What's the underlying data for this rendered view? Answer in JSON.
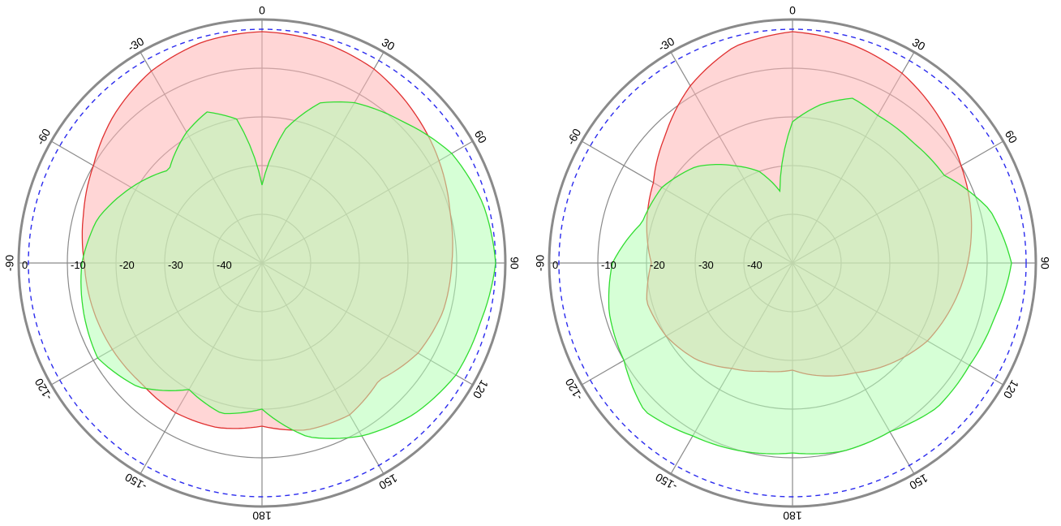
{
  "chart_data": [
    {
      "type": "polar",
      "angle_labels": [
        "0",
        "30",
        "60",
        "90",
        "120",
        "150",
        "180",
        "-150",
        "-120",
        "-90",
        "-60",
        "-30"
      ],
      "radial_labels": [
        "0",
        "-10",
        "-20",
        "-30",
        "-40"
      ],
      "rlim": [
        -50,
        0
      ],
      "reference_ring": -2,
      "grid": true,
      "series": [
        {
          "color": "#e03030",
          "fill": "#ffb4b4",
          "angles": [
            0,
            15,
            30,
            45,
            60,
            75,
            90,
            105,
            120,
            135,
            150,
            165,
            180,
            195,
            210,
            225,
            240,
            255,
            270,
            285,
            300,
            315,
            330,
            345,
            360
          ],
          "values": [
            -2.5,
            -3,
            -4,
            -6,
            -8,
            -10,
            -11,
            -11.5,
            -13,
            -16,
            -14,
            -14.5,
            -16.5,
            -15,
            -14.5,
            -15,
            -14.5,
            -14,
            -13.5,
            -12,
            -10,
            -7,
            -4.5,
            -3,
            -2.5
          ]
        },
        {
          "color": "#30dd30",
          "fill": "#b4ffb4",
          "angles": [
            0,
            10,
            20,
            30,
            45,
            60,
            75,
            90,
            105,
            120,
            135,
            150,
            165,
            180,
            195,
            210,
            225,
            240,
            255,
            270,
            285,
            300,
            315,
            330,
            340,
            350,
            360
          ],
          "values": [
            -34,
            -22,
            -15,
            -12,
            -9,
            -5,
            -3,
            -2,
            -3.5,
            -4,
            -6,
            -9,
            -13,
            -20,
            -18,
            -20,
            -14,
            -11,
            -12,
            -13,
            -15,
            -19,
            -23,
            -19,
            -17,
            -20,
            -34
          ]
        }
      ]
    },
    {
      "type": "polar",
      "angle_labels": [
        "0",
        "30",
        "60",
        "90",
        "120",
        "150",
        "180",
        "-150",
        "-120",
        "-90",
        "-60",
        "-30"
      ],
      "radial_labels": [
        "0",
        "-10",
        "-20",
        "-30",
        "-40"
      ],
      "rlim": [
        -50,
        0
      ],
      "reference_ring": -2,
      "grid": true,
      "series": [
        {
          "color": "#e03030",
          "fill": "#ffb4b4",
          "angles": [
            0,
            15,
            30,
            45,
            60,
            75,
            90,
            105,
            120,
            135,
            150,
            165,
            180,
            195,
            210,
            225,
            240,
            255,
            270,
            285,
            300,
            315,
            330,
            345,
            360
          ],
          "values": [
            -2.5,
            -3.5,
            -5,
            -7.5,
            -10,
            -12,
            -14,
            -16,
            -18,
            -21,
            -24,
            -26,
            -28,
            -27,
            -25,
            -22,
            -20,
            -19,
            -21,
            -19,
            -17,
            -13,
            -8,
            -4,
            -2.5
          ]
        },
        {
          "color": "#30dd30",
          "fill": "#b4ffb4",
          "angles": [
            0,
            10,
            20,
            30,
            45,
            60,
            75,
            90,
            105,
            120,
            135,
            150,
            165,
            180,
            195,
            210,
            225,
            240,
            255,
            270,
            285,
            300,
            315,
            330,
            340,
            350,
            360
          ],
          "values": [
            -21,
            -17,
            -14,
            -15,
            -15,
            -14,
            -8,
            -5,
            -7,
            -8,
            -8,
            -10,
            -10,
            -11,
            -10,
            -9,
            -7,
            -10,
            -11,
            -13,
            -18,
            -19,
            -22,
            -27,
            -30,
            -35,
            -21
          ]
        }
      ]
    }
  ]
}
